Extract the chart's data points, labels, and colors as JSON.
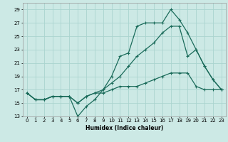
{
  "xlabel": "Humidex (Indice chaleur)",
  "background_color": "#cce9e5",
  "grid_color": "#aad4cf",
  "line_color": "#1a6b5a",
  "x_values": [
    0,
    1,
    2,
    3,
    4,
    5,
    6,
    7,
    8,
    9,
    10,
    11,
    12,
    13,
    14,
    15,
    16,
    17,
    18,
    19,
    20,
    21,
    22,
    23
  ],
  "line1": [
    16.5,
    15.5,
    15.5,
    16.0,
    16.0,
    16.0,
    13.0,
    14.5,
    15.5,
    17.0,
    19.0,
    22.0,
    22.5,
    26.5,
    27.0,
    27.0,
    27.0,
    29.0,
    27.5,
    25.5,
    23.0,
    20.5,
    18.5,
    17.0
  ],
  "line2": [
    16.5,
    15.5,
    15.5,
    16.0,
    16.0,
    16.0,
    15.0,
    16.0,
    16.5,
    17.0,
    18.0,
    19.0,
    20.5,
    22.0,
    23.0,
    24.0,
    25.5,
    26.5,
    26.5,
    22.0,
    23.0,
    20.5,
    18.5,
    17.0
  ],
  "line3": [
    16.5,
    15.5,
    15.5,
    16.0,
    16.0,
    16.0,
    15.0,
    16.0,
    16.5,
    16.5,
    17.0,
    17.5,
    17.5,
    17.5,
    18.0,
    18.5,
    19.0,
    19.5,
    19.5,
    19.5,
    17.5,
    17.0,
    17.0,
    17.0
  ],
  "ylim": [
    13,
    30
  ],
  "yticks": [
    13,
    15,
    17,
    19,
    21,
    23,
    25,
    27,
    29
  ],
  "xlim": [
    -0.5,
    23.5
  ],
  "xticks": [
    0,
    1,
    2,
    3,
    4,
    5,
    6,
    7,
    8,
    9,
    10,
    11,
    12,
    13,
    14,
    15,
    16,
    17,
    18,
    19,
    20,
    21,
    22,
    23
  ]
}
